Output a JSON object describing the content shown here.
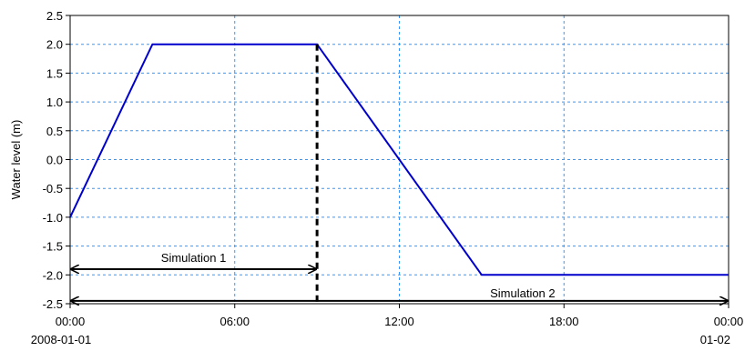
{
  "chart_data": {
    "type": "line",
    "ylabel": "Water level (m)",
    "ylim": [
      -2.5,
      2.5
    ],
    "yticks": [
      -2.5,
      -2.0,
      -1.5,
      -1.0,
      -0.5,
      0.0,
      0.5,
      1.0,
      1.5,
      2.0,
      2.5
    ],
    "ytick_labels": [
      "-2.5",
      "-2.0",
      "-1.5",
      "-1.0",
      "-0.5",
      "0.0",
      "0.5",
      "1.0",
      "1.5",
      "2.0",
      "2.5"
    ],
    "xlim": [
      "2008-01-01 00:00",
      "2008-01-02 00:00"
    ],
    "xticks": [
      {
        "x": "2008-01-01 00:00",
        "line1": "00:00",
        "line2": "2008-01-01"
      },
      {
        "x": "2008-01-01 06:00",
        "line1": "06:00",
        "line2": ""
      },
      {
        "x": "2008-01-01 12:00",
        "line1": "12:00",
        "line2": ""
      },
      {
        "x": "2008-01-01 18:00",
        "line1": "18:00",
        "line2": ""
      },
      {
        "x": "2008-01-02 00:00",
        "line1": "00:00",
        "line2": "01-02"
      }
    ],
    "grid": true,
    "series": [
      {
        "color": "#0000cc",
        "points": [
          {
            "x": "2008-01-01 00:00",
            "y": -1.0
          },
          {
            "x": "2008-01-01 03:00",
            "y": 2.0
          },
          {
            "x": "2008-01-01 09:00",
            "y": 2.0
          },
          {
            "x": "2008-01-01 15:00",
            "y": -2.0
          },
          {
            "x": "2008-01-02 00:00",
            "y": -2.0
          }
        ]
      }
    ],
    "vline": {
      "x": "2008-01-01 09:00",
      "style": "dashed",
      "color": "#000000"
    },
    "annotations": [
      {
        "label": "Simulation 1",
        "x_start": "2008-01-01 00:00",
        "x_end": "2008-01-01 09:00",
        "y": -1.9
      },
      {
        "label": "Simulation 2",
        "x_start": "2008-01-01 00:00",
        "x_end": "2008-01-02 00:00",
        "y": -2.45
      }
    ]
  }
}
